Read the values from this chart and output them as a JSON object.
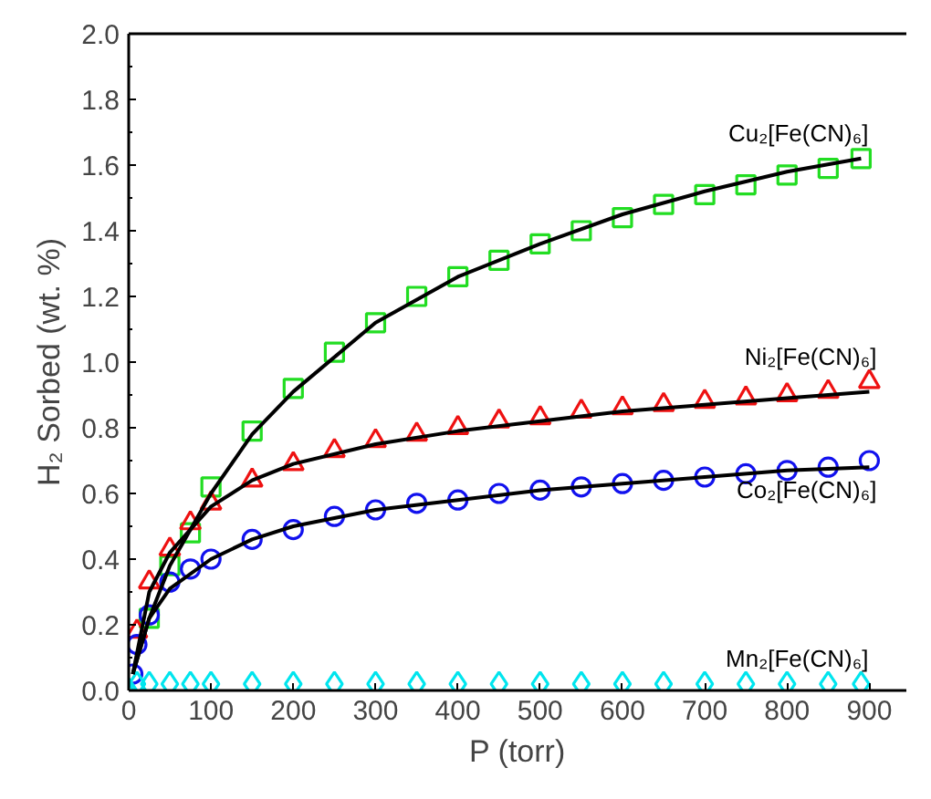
{
  "chart_data": {
    "type": "scatter",
    "xlabel": "P (torr)",
    "ylabel": "H₂ Sorbed (wt. %)",
    "xlim": [
      0,
      945
    ],
    "ylim": [
      0,
      2.0
    ],
    "xticks": [
      0,
      100,
      200,
      300,
      400,
      500,
      600,
      700,
      800,
      900
    ],
    "yticks": [
      {
        "value": 0,
        "label": "0.0"
      },
      {
        "value": 0.2,
        "label": "0.2"
      },
      {
        "value": 0.4,
        "label": "0.4"
      },
      {
        "value": 0.6,
        "label": "0.6"
      },
      {
        "value": 0.8,
        "label": "0.8"
      },
      {
        "value": 1.0,
        "label": "1.0"
      },
      {
        "value": 1.2,
        "label": "1.2"
      },
      {
        "value": 1.4,
        "label": "1.4"
      },
      {
        "value": 1.6,
        "label": "1.6"
      },
      {
        "value": 1.8,
        "label": "1.8"
      },
      {
        "value": 2.0,
        "label": "2.0"
      }
    ],
    "grid": false,
    "legend": false,
    "series": [
      {
        "name": "Cu₂[Fe(CN)₆]",
        "color": "#22dd22",
        "marker": "square",
        "x": [
          25,
          50,
          75,
          100,
          150,
          200,
          250,
          300,
          350,
          400,
          450,
          500,
          550,
          600,
          650,
          700,
          750,
          800,
          850,
          890
        ],
        "values": [
          0.22,
          0.38,
          0.48,
          0.62,
          0.79,
          0.92,
          1.03,
          1.12,
          1.2,
          1.26,
          1.31,
          1.36,
          1.4,
          1.44,
          1.48,
          1.51,
          1.54,
          1.57,
          1.59,
          1.62
        ]
      },
      {
        "name": "Ni₂[Fe(CN)₆]",
        "color": "#ee1111",
        "marker": "triangle",
        "x": [
          10,
          25,
          50,
          75,
          100,
          150,
          200,
          250,
          300,
          350,
          400,
          450,
          500,
          550,
          600,
          650,
          700,
          750,
          800,
          850,
          900
        ],
        "values": [
          0.18,
          0.33,
          0.43,
          0.51,
          0.57,
          0.64,
          0.69,
          0.73,
          0.76,
          0.78,
          0.8,
          0.82,
          0.83,
          0.85,
          0.86,
          0.87,
          0.88,
          0.89,
          0.9,
          0.91,
          0.94
        ]
      },
      {
        "name": "Co₂[Fe(CN)₆]",
        "color": "#1111ee",
        "marker": "circle",
        "x": [
          5,
          10,
          25,
          50,
          75,
          100,
          150,
          200,
          250,
          300,
          350,
          400,
          450,
          500,
          550,
          600,
          650,
          700,
          750,
          800,
          850,
          900
        ],
        "values": [
          0.05,
          0.14,
          0.23,
          0.33,
          0.37,
          0.4,
          0.46,
          0.49,
          0.53,
          0.55,
          0.57,
          0.58,
          0.6,
          0.61,
          0.62,
          0.63,
          0.64,
          0.65,
          0.66,
          0.67,
          0.68,
          0.7
        ]
      },
      {
        "name": "Mn₂[Fe(CN)₆]",
        "color": "#00e5ee",
        "marker": "diamond",
        "x": [
          0,
          10,
          25,
          50,
          75,
          100,
          150,
          200,
          250,
          300,
          350,
          400,
          450,
          500,
          550,
          600,
          650,
          700,
          750,
          800,
          850,
          890
        ],
        "values": [
          0.0,
          0.02,
          0.02,
          0.02,
          0.02,
          0.02,
          0.02,
          0.02,
          0.02,
          0.02,
          0.02,
          0.02,
          0.02,
          0.02,
          0.02,
          0.02,
          0.02,
          0.02,
          0.02,
          0.02,
          0.02,
          0.02
        ]
      },
      {
        "type": "line",
        "color": "#000000",
        "marker": "none",
        "x": [
          5,
          25,
          50,
          100,
          150,
          200,
          300,
          400,
          500,
          600,
          700,
          800,
          890
        ],
        "values": [
          0.05,
          0.22,
          0.38,
          0.6,
          0.78,
          0.91,
          1.12,
          1.26,
          1.36,
          1.45,
          1.52,
          1.58,
          1.62
        ]
      },
      {
        "type": "line",
        "color": "#000000",
        "marker": "none",
        "x": [
          5,
          25,
          50,
          100,
          150,
          200,
          300,
          400,
          500,
          600,
          700,
          800,
          900
        ],
        "values": [
          0.05,
          0.3,
          0.42,
          0.56,
          0.64,
          0.69,
          0.75,
          0.79,
          0.82,
          0.85,
          0.87,
          0.89,
          0.91
        ]
      },
      {
        "type": "line",
        "color": "#000000",
        "marker": "none",
        "x": [
          5,
          25,
          50,
          100,
          150,
          200,
          300,
          400,
          500,
          600,
          700,
          800,
          900
        ],
        "values": [
          0.05,
          0.22,
          0.31,
          0.4,
          0.46,
          0.5,
          0.55,
          0.58,
          0.61,
          0.63,
          0.65,
          0.67,
          0.68
        ]
      }
    ]
  }
}
